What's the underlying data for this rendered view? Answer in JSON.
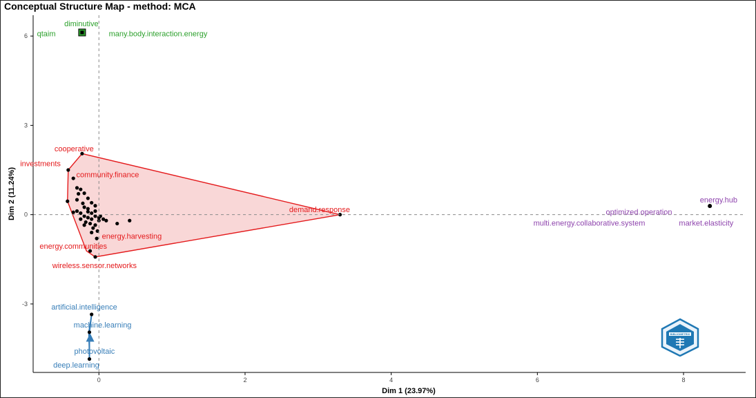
{
  "chart_data": {
    "type": "scatter",
    "title": "Conceptual Structure Map - method: MCA",
    "xlabel": "Dim 1 (23.97%)",
    "ylabel": "Dim 2 (11.24%)",
    "xlim": [
      -0.9,
      8.85
    ],
    "ylim": [
      -5.3,
      6.7
    ],
    "xticks": [
      0,
      2,
      4,
      6,
      8
    ],
    "yticks": [
      -3,
      0,
      3,
      6
    ],
    "grid": false,
    "reference_lines": {
      "x": 0,
      "y": 0
    },
    "clusters": [
      {
        "color": "#2ca02c",
        "fill": "#2ca02c",
        "hull": [
          [
            -0.25,
            6.15
          ],
          [
            -0.2,
            6.15
          ],
          [
            -0.2,
            6.1
          ],
          [
            -0.25,
            6.1
          ]
        ],
        "centroid": [
          -0.23,
          6.12
        ],
        "points": [
          [
            -0.24,
            6.13
          ],
          [
            -0.22,
            6.12
          ],
          [
            -0.23,
            6.11
          ]
        ],
        "labels": [
          {
            "text": "diminutive",
            "x": -0.24,
            "y": 6.42
          },
          {
            "text": "qtaim",
            "x": -0.72,
            "y": 6.08
          },
          {
            "text": "many.body.interaction.energy",
            "x": 0.81,
            "y": 6.08
          }
        ]
      },
      {
        "color": "#e41a1c",
        "fill": "#f4b6b6",
        "hull": [
          [
            -0.23,
            2.05
          ],
          [
            3.3,
            0.0
          ],
          [
            -0.05,
            -1.42
          ],
          [
            -0.17,
            -1.22
          ],
          [
            -0.43,
            0.45
          ],
          [
            -0.42,
            1.5
          ]
        ],
        "centroid": [
          -0.1,
          0.0
        ],
        "points": [
          [
            -0.23,
            2.05
          ],
          [
            -0.42,
            1.5
          ],
          [
            -0.35,
            1.22
          ],
          [
            -0.3,
            0.9
          ],
          [
            -0.25,
            0.85
          ],
          [
            -0.28,
            0.7
          ],
          [
            -0.2,
            0.72
          ],
          [
            -0.3,
            0.5
          ],
          [
            -0.15,
            0.55
          ],
          [
            -0.22,
            0.38
          ],
          [
            -0.1,
            0.4
          ],
          [
            -0.2,
            0.25
          ],
          [
            -0.3,
            0.12
          ],
          [
            -0.25,
            0.05
          ],
          [
            -0.35,
            0.08
          ],
          [
            -0.15,
            0.1
          ],
          [
            -0.1,
            0.05
          ],
          [
            -0.05,
            0.12
          ],
          [
            -0.2,
            -0.05
          ],
          [
            -0.15,
            -0.1
          ],
          [
            -0.1,
            -0.15
          ],
          [
            -0.05,
            -0.05
          ],
          [
            0.0,
            -0.1
          ],
          [
            -0.25,
            -0.15
          ],
          [
            -0.18,
            -0.25
          ],
          [
            -0.12,
            -0.3
          ],
          [
            -0.05,
            -0.35
          ],
          [
            0.0,
            -0.2
          ],
          [
            -0.08,
            -0.45
          ],
          [
            -0.2,
            -0.35
          ],
          [
            -0.15,
            0.2
          ],
          [
            -0.05,
            0.3
          ],
          [
            0.02,
            -0.05
          ],
          [
            0.06,
            -0.15
          ],
          [
            0.1,
            -0.2
          ],
          [
            0.25,
            -0.3
          ],
          [
            0.42,
            -0.2
          ],
          [
            -0.03,
            -0.8
          ],
          [
            -0.12,
            -1.22
          ],
          [
            -0.05,
            -1.42
          ],
          [
            3.3,
            0.0
          ],
          [
            -0.43,
            0.45
          ],
          [
            -0.1,
            -0.6
          ],
          [
            -0.02,
            -0.55
          ]
        ],
        "labels": [
          {
            "text": "cooperative",
            "x": -0.34,
            "y": 2.22
          },
          {
            "text": "investments",
            "x": -0.8,
            "y": 1.72
          },
          {
            "text": "community.finance",
            "x": 0.12,
            "y": 1.35
          },
          {
            "text": "demand.response",
            "x": 3.02,
            "y": 0.18
          },
          {
            "text": "energy.harvesting",
            "x": 0.45,
            "y": -0.72
          },
          {
            "text": "energy.communities",
            "x": -0.35,
            "y": -1.05
          },
          {
            "text": "wireless.sensor.networks",
            "x": -0.06,
            "y": -1.7
          }
        ]
      },
      {
        "color": "#8e44ad",
        "fill": "#d7b5e6",
        "hull": [
          [
            8.35,
            0.3
          ],
          [
            8.37,
            0.3
          ],
          [
            8.37,
            0.28
          ],
          [
            8.35,
            0.28
          ]
        ],
        "centroid": [
          8.36,
          0.29
        ],
        "points": [
          [
            8.36,
            0.3
          ]
        ],
        "labels": [
          {
            "text": "energy.hub",
            "x": 8.48,
            "y": 0.5
          },
          {
            "text": "optimized.operation",
            "x": 7.39,
            "y": 0.1
          },
          {
            "text": "multi.energy.collaborative.system",
            "x": 6.71,
            "y": -0.28
          },
          {
            "text": "market.elasticity",
            "x": 8.31,
            "y": -0.28
          }
        ]
      },
      {
        "color": "#377eb8",
        "fill": "#9ecae1",
        "hull": [
          [
            -0.1,
            -3.35
          ],
          [
            -0.13,
            -3.95
          ],
          [
            -0.13,
            -4.85
          ],
          [
            -0.14,
            -3.95
          ]
        ],
        "centroid": [
          -0.12,
          -4.15
        ],
        "points": [
          [
            -0.1,
            -3.35
          ],
          [
            -0.13,
            -3.95
          ],
          [
            -0.13,
            -4.85
          ]
        ],
        "labels": [
          {
            "text": "artificial.intelligence",
            "x": -0.2,
            "y": -3.1
          },
          {
            "text": "machine.learning",
            "x": 0.05,
            "y": -3.7
          },
          {
            "text": "photovoltaic",
            "x": -0.06,
            "y": -4.58
          },
          {
            "text": "deep.learning",
            "x": -0.31,
            "y": -5.05
          }
        ]
      }
    ]
  }
}
